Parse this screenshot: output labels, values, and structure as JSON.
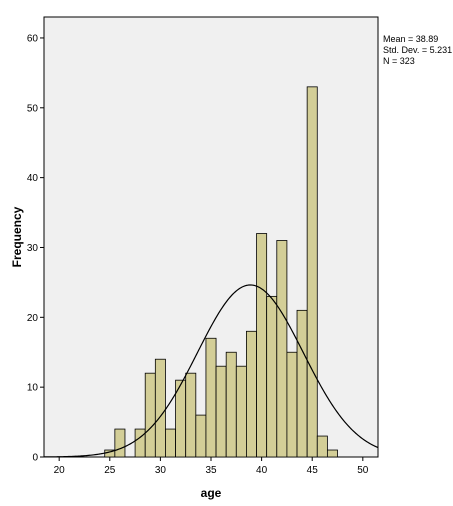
{
  "chart_data": {
    "type": "bar",
    "subtype": "histogram-with-normal-curve",
    "xlabel": "age",
    "ylabel": "Frequency",
    "xlim": [
      18.5,
      51.5
    ],
    "ylim": [
      0,
      63
    ],
    "xticks": [
      20,
      25,
      30,
      35,
      40,
      45,
      50
    ],
    "yticks": [
      0,
      10,
      20,
      30,
      40,
      50,
      60
    ],
    "bin_width": 1,
    "bins": [
      {
        "x": 25,
        "value": 1
      },
      {
        "x": 26,
        "value": 4
      },
      {
        "x": 27,
        "value": 0
      },
      {
        "x": 28,
        "value": 4
      },
      {
        "x": 29,
        "value": 12
      },
      {
        "x": 30,
        "value": 14
      },
      {
        "x": 31,
        "value": 4
      },
      {
        "x": 32,
        "value": 11
      },
      {
        "x": 33,
        "value": 12
      },
      {
        "x": 34,
        "value": 6
      },
      {
        "x": 35,
        "value": 17
      },
      {
        "x": 36,
        "value": 13
      },
      {
        "x": 37,
        "value": 15
      },
      {
        "x": 38,
        "value": 13
      },
      {
        "x": 39,
        "value": 18
      },
      {
        "x": 40,
        "value": 32
      },
      {
        "x": 41,
        "value": 23
      },
      {
        "x": 42,
        "value": 31
      },
      {
        "x": 43,
        "value": 15
      },
      {
        "x": 44,
        "value": 21
      },
      {
        "x": 45,
        "value": 53
      },
      {
        "x": 46,
        "value": 3
      },
      {
        "x": 47,
        "value": 1
      }
    ],
    "normal_curve": {
      "mean": 38.89,
      "std_dev": 5.231,
      "n": 323
    },
    "stats_text": [
      "Mean = 38.89",
      "Std. Dev. = 5.231",
      "N = 323"
    ],
    "legend": "top-right",
    "grid": false,
    "colors": {
      "plot_bg": "#f0f0f0",
      "bar_fill": "#d3ce97",
      "bar_stroke": "#000000",
      "curve": "#000000"
    }
  }
}
